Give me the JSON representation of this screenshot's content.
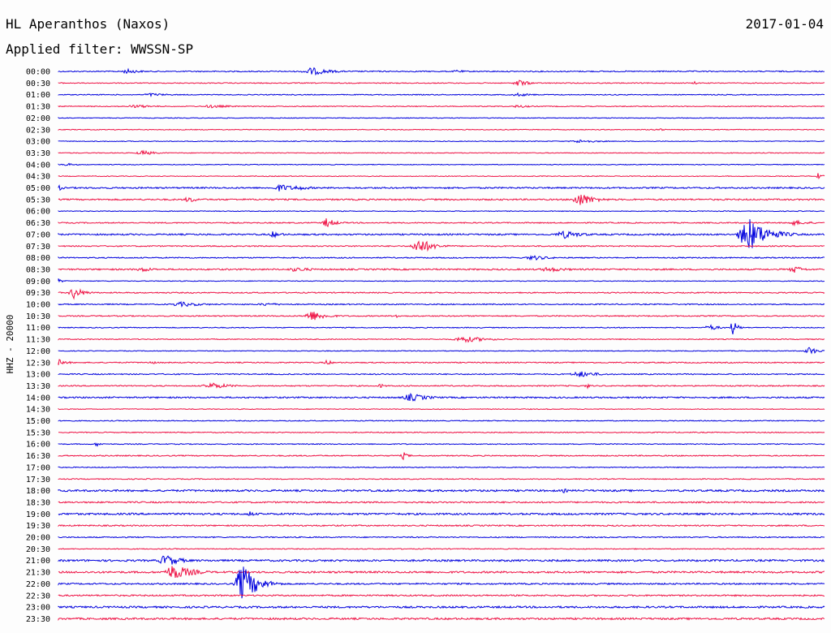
{
  "header": {
    "station": "HL Aperanthos (Naxos)",
    "date": "2017-01-04",
    "filter_label": "Applied filter: WWSSN-SP"
  },
  "chart_data": {
    "type": "line",
    "kind": "helicorder",
    "channel_label": "HHZ - 20000",
    "line_colors": [
      "#0000dd",
      "#ee1144"
    ],
    "rows": [
      {
        "label": "00:00",
        "color": "blue",
        "noise": 1.5,
        "events": [
          [
            0.09,
            3,
            0.03
          ],
          [
            0.33,
            5,
            0.04
          ],
          [
            0.52,
            2,
            0.02
          ]
        ]
      },
      {
        "label": "00:30",
        "color": "red",
        "noise": 1.2,
        "events": [
          [
            0.6,
            5,
            0.02
          ],
          [
            0.83,
            2,
            0.01
          ]
        ]
      },
      {
        "label": "01:00",
        "color": "blue",
        "noise": 1.2,
        "events": [
          [
            0.12,
            2,
            0.04
          ],
          [
            0.6,
            2,
            0.04
          ]
        ]
      },
      {
        "label": "01:30",
        "color": "red",
        "noise": 1.2,
        "events": [
          [
            0.1,
            2,
            0.05
          ],
          [
            0.2,
            2,
            0.05
          ],
          [
            0.6,
            2,
            0.03
          ]
        ]
      },
      {
        "label": "02:00",
        "color": "blue",
        "noise": 1.0,
        "events": []
      },
      {
        "label": "02:30",
        "color": "red",
        "noise": 1.0,
        "events": [
          [
            0.78,
            2,
            0.02
          ]
        ]
      },
      {
        "label": "03:00",
        "color": "blue",
        "noise": 1.0,
        "events": [
          [
            0.68,
            2,
            0.05
          ]
        ]
      },
      {
        "label": "03:30",
        "color": "red",
        "noise": 1.0,
        "events": [
          [
            0.11,
            3,
            0.03
          ]
        ]
      },
      {
        "label": "04:00",
        "color": "blue",
        "noise": 1.0,
        "events": [
          [
            0.01,
            2,
            0.02
          ]
        ]
      },
      {
        "label": "04:30",
        "color": "red",
        "noise": 1.0,
        "events": [
          [
            0.99,
            5,
            0.01
          ]
        ]
      },
      {
        "label": "05:00",
        "color": "blue",
        "noise": 2.0,
        "events": [
          [
            0.0,
            4,
            0.01
          ],
          [
            0.29,
            5,
            0.03
          ],
          [
            0.31,
            3,
            0.04
          ]
        ]
      },
      {
        "label": "05:30",
        "color": "red",
        "noise": 2.0,
        "events": [
          [
            0.17,
            4,
            0.02
          ],
          [
            0.68,
            9,
            0.03
          ]
        ]
      },
      {
        "label": "06:00",
        "color": "blue",
        "noise": 1.0,
        "events": []
      },
      {
        "label": "06:30",
        "color": "red",
        "noise": 1.5,
        "events": [
          [
            0.35,
            6,
            0.02
          ],
          [
            0.96,
            3,
            0.04
          ]
        ]
      },
      {
        "label": "07:00",
        "color": "blue",
        "noise": 2.0,
        "events": [
          [
            0.28,
            4,
            0.02
          ],
          [
            0.66,
            5,
            0.04
          ],
          [
            0.9,
            22,
            0.04
          ]
        ]
      },
      {
        "label": "07:30",
        "color": "red",
        "noise": 1.5,
        "events": [
          [
            0.47,
            10,
            0.03
          ]
        ]
      },
      {
        "label": "08:00",
        "color": "blue",
        "noise": 1.5,
        "events": [
          [
            0.62,
            3,
            0.04
          ]
        ]
      },
      {
        "label": "08:30",
        "color": "red",
        "noise": 2.0,
        "events": [
          [
            0.11,
            3,
            0.03
          ],
          [
            0.31,
            3,
            0.04
          ],
          [
            0.64,
            3,
            0.05
          ],
          [
            0.96,
            5,
            0.02
          ]
        ]
      },
      {
        "label": "09:00",
        "color": "blue",
        "noise": 1.0,
        "events": [
          [
            0.0,
            3,
            0.01
          ]
        ]
      },
      {
        "label": "09:30",
        "color": "red",
        "noise": 1.5,
        "events": [
          [
            0.02,
            8,
            0.02
          ]
        ]
      },
      {
        "label": "10:00",
        "color": "blue",
        "noise": 1.5,
        "events": [
          [
            0.16,
            3,
            0.05
          ],
          [
            0.27,
            2,
            0.04
          ]
        ]
      },
      {
        "label": "10:30",
        "color": "red",
        "noise": 1.5,
        "events": [
          [
            0.33,
            7,
            0.03
          ],
          [
            0.44,
            3,
            0.01
          ]
        ]
      },
      {
        "label": "11:00",
        "color": "blue",
        "noise": 1.2,
        "events": [
          [
            0.85,
            4,
            0.02
          ],
          [
            0.88,
            10,
            0.01
          ]
        ]
      },
      {
        "label": "11:30",
        "color": "red",
        "noise": 1.2,
        "events": [
          [
            0.53,
            4,
            0.05
          ]
        ]
      },
      {
        "label": "12:00",
        "color": "blue",
        "noise": 1.0,
        "events": [
          [
            0.98,
            5,
            0.02
          ]
        ]
      },
      {
        "label": "12:30",
        "color": "red",
        "noise": 1.5,
        "events": [
          [
            0.0,
            4,
            0.02
          ],
          [
            0.12,
            3,
            0.01
          ],
          [
            0.35,
            4,
            0.01
          ]
        ]
      },
      {
        "label": "13:00",
        "color": "blue",
        "noise": 1.5,
        "events": [
          [
            0.68,
            4,
            0.04
          ]
        ]
      },
      {
        "label": "13:30",
        "color": "red",
        "noise": 1.5,
        "events": [
          [
            0.2,
            4,
            0.04
          ],
          [
            0.42,
            3,
            0.01
          ],
          [
            0.69,
            3,
            0.01
          ]
        ]
      },
      {
        "label": "14:00",
        "color": "blue",
        "noise": 2.0,
        "events": [
          [
            0.46,
            5,
            0.04
          ]
        ]
      },
      {
        "label": "14:30",
        "color": "red",
        "noise": 1.0,
        "events": []
      },
      {
        "label": "15:00",
        "color": "blue",
        "noise": 1.2,
        "events": []
      },
      {
        "label": "15:30",
        "color": "red",
        "noise": 1.2,
        "events": []
      },
      {
        "label": "16:00",
        "color": "blue",
        "noise": 1.2,
        "events": [
          [
            0.05,
            3,
            0.01
          ]
        ]
      },
      {
        "label": "16:30",
        "color": "red",
        "noise": 1.5,
        "events": [
          [
            0.45,
            5,
            0.01
          ]
        ]
      },
      {
        "label": "17:00",
        "color": "blue",
        "noise": 1.2,
        "events": []
      },
      {
        "label": "17:30",
        "color": "red",
        "noise": 1.2,
        "events": []
      },
      {
        "label": "18:00",
        "color": "blue",
        "noise": 2.5,
        "events": [
          [
            0.66,
            3,
            0.01
          ]
        ]
      },
      {
        "label": "18:30",
        "color": "red",
        "noise": 2.0,
        "events": []
      },
      {
        "label": "19:00",
        "color": "blue",
        "noise": 2.5,
        "events": [
          [
            0.25,
            4,
            0.01
          ]
        ]
      },
      {
        "label": "19:30",
        "color": "red",
        "noise": 1.8,
        "events": []
      },
      {
        "label": "20:00",
        "color": "blue",
        "noise": 1.5,
        "events": []
      },
      {
        "label": "20:30",
        "color": "red",
        "noise": 1.2,
        "events": []
      },
      {
        "label": "21:00",
        "color": "blue",
        "noise": 2.5,
        "events": [
          [
            0.14,
            8,
            0.03
          ]
        ]
      },
      {
        "label": "21:30",
        "color": "red",
        "noise": 2.5,
        "events": [
          [
            0.15,
            10,
            0.04
          ]
        ]
      },
      {
        "label": "22:00",
        "color": "blue",
        "noise": 2.0,
        "events": [
          [
            0.24,
            25,
            0.03
          ]
        ]
      },
      {
        "label": "22:30",
        "color": "red",
        "noise": 2.0,
        "events": []
      },
      {
        "label": "23:00",
        "color": "blue",
        "noise": 2.5,
        "events": []
      },
      {
        "label": "23:30",
        "color": "red",
        "noise": 2.5,
        "events": []
      }
    ]
  }
}
